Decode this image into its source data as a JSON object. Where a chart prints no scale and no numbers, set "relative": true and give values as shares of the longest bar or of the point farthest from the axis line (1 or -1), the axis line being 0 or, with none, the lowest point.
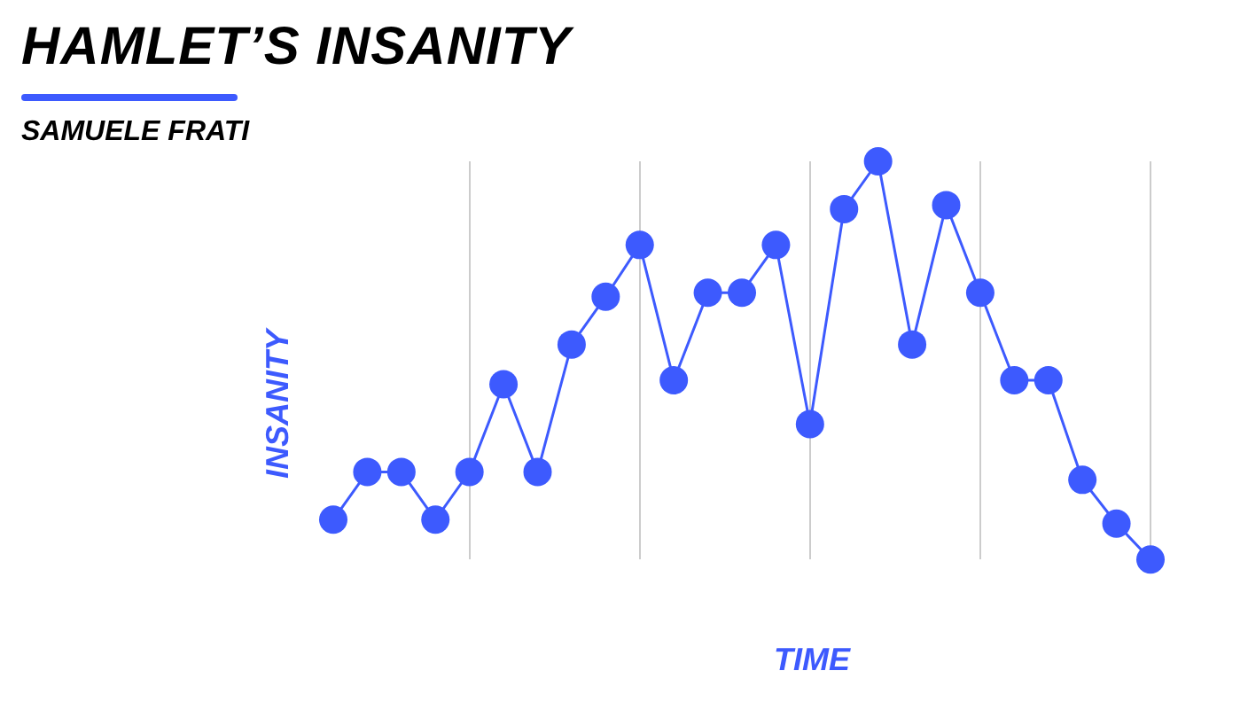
{
  "chart_data": {
    "type": "line",
    "title": "HAMLET’S INSANITY",
    "subtitle": "SAMUELE FRATI",
    "xlabel": "TIME",
    "ylabel": "INSANITY",
    "relative": true,
    "categories": [
      null,
      null,
      null,
      null,
      null,
      null,
      null,
      null,
      null,
      null,
      null,
      null,
      null,
      null,
      null,
      null,
      null,
      null,
      null,
      null,
      null,
      null,
      null,
      null,
      null
    ],
    "series": [
      {
        "color": "#3d5afe",
        "values": [
          0.1,
          0.22,
          0.22,
          0.1,
          0.22,
          0.44,
          0.22,
          0.54,
          0.66,
          0.79,
          0.45,
          0.67,
          0.67,
          0.79,
          0.34,
          0.88,
          1,
          0.54,
          0.89,
          0.67,
          0.45,
          0.45,
          0.2,
          0.09,
          0
        ]
      }
    ],
    "grid": "x",
    "legend": false,
    "marker": "circle",
    "line_style": "solid"
  }
}
